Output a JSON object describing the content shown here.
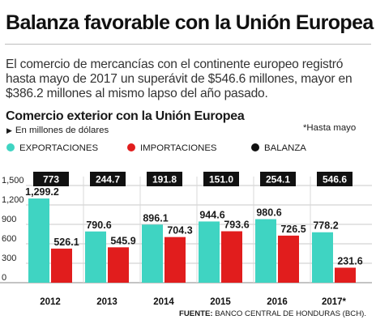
{
  "header": {
    "headline": "Balanza favorable con la Unión Europea",
    "lede": "El comercio de mercancías con el continente europeo registró hasta mayo de 2017 un superávit de $546.6 millones, mayor en $386.2 millones al mismo lapso del año pasado."
  },
  "chart_header": {
    "title": "Comercio exterior con la Unión Europea",
    "subtitle": "En millones de dólares",
    "note": "*Hasta mayo"
  },
  "legend": [
    {
      "label": "EXPORTACIONES",
      "color": "#3fd4c2"
    },
    {
      "label": "IMPORTACIONES",
      "color": "#e11d1d"
    },
    {
      "label": "BALANZA",
      "color": "#111111"
    }
  ],
  "source": {
    "label": "FUENTE:",
    "text": "BANCO CENTRAL DE HONDURAS (BCH)."
  },
  "chart_data": {
    "type": "bar",
    "categories": [
      "2012",
      "2013",
      "2014",
      "2015",
      "2016",
      "2017*"
    ],
    "series": [
      {
        "name": "EXPORTACIONES",
        "values": [
          1299.2,
          790.6,
          896.1,
          944.6,
          980.6,
          778.2
        ],
        "labels": [
          "1,299.2",
          "790.6",
          "896.1",
          "944.6",
          "980.6",
          "778.2"
        ],
        "color": "#3fd4c2"
      },
      {
        "name": "IMPORTACIONES",
        "values": [
          526.1,
          545.9,
          704.3,
          793.6,
          726.5,
          231.6
        ],
        "labels": [
          "526.1",
          "545.9",
          "704.3",
          "793.6",
          "726.5",
          "231.6"
        ],
        "color": "#e11d1d"
      },
      {
        "name": "BALANZA",
        "values": [
          773,
          244.7,
          191.8,
          151.0,
          254.1,
          546.6
        ],
        "labels": [
          "773",
          "244.7",
          "191.8",
          "151.0",
          "254.1",
          "546.6"
        ],
        "color": "#111111"
      }
    ],
    "ylim": [
      0,
      1500
    ],
    "yticks": [
      0,
      300,
      600,
      900,
      1200,
      1500
    ],
    "ytick_labels": [
      "0",
      "300",
      "600",
      "900",
      "1,200",
      "1,500"
    ],
    "grid": true,
    "xlabel": "",
    "ylabel": ""
  }
}
